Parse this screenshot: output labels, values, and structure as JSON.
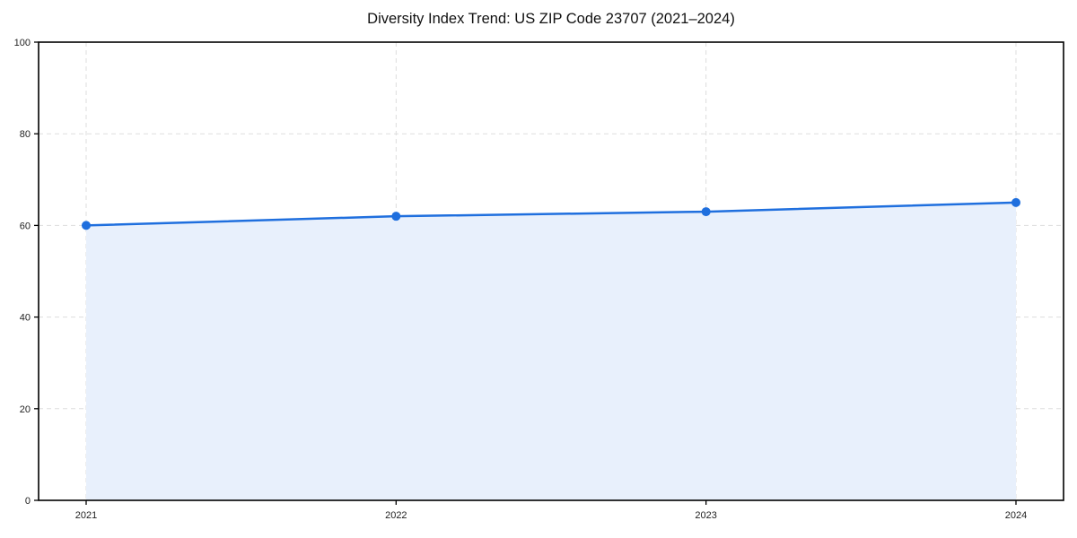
{
  "chart_data": {
    "type": "area",
    "title": "Diversity Index Trend: US ZIP Code 23707 (2021–2024)",
    "categories": [
      "2021",
      "2022",
      "2023",
      "2024"
    ],
    "series": [
      {
        "name": "Diversity Index",
        "values": [
          60,
          62,
          63,
          65
        ]
      }
    ],
    "xlabel": "",
    "ylabel": "",
    "ylim": [
      0,
      100
    ],
    "yticks": [
      0,
      20,
      40,
      60,
      80,
      100
    ],
    "grid": "dashed, horizontal and vertical",
    "legend_position": "none",
    "colors": {
      "line": "#1f6fde",
      "marker": "#1f6fde",
      "area_fill": "#e8f0fc",
      "grid": "#dddddd",
      "spine": "#000000",
      "background": "#ffffff",
      "tick_text": "#222222",
      "title_text": "#111111"
    }
  }
}
